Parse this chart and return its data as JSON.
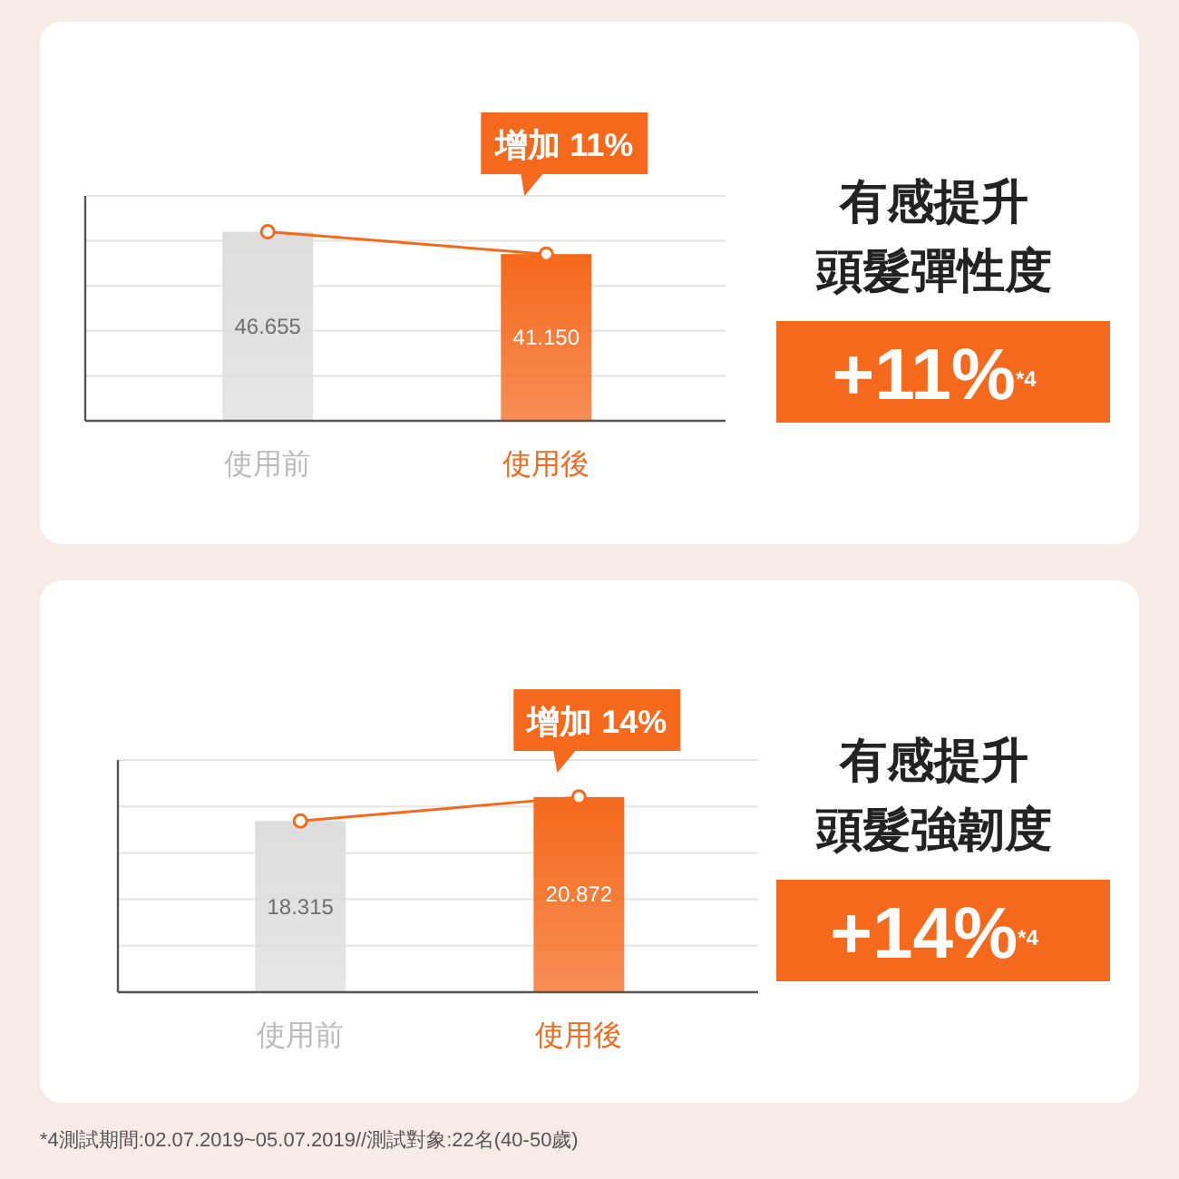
{
  "chart_data": [
    {
      "type": "bar",
      "categories": [
        "使用前",
        "使用後"
      ],
      "grid": "y",
      "annotations": [
        "增加 11%",
        "有感提升",
        "頭髮彈性度",
        "+11%$^{*4}$"
      ],
      "series": [
        {
          "values": [
            46.655,
            41.15
          ],
          "colors": [
            "#dddddd",
            "#f4691c"
          ],
          "value_labels": [
            "46.655",
            "41.150"
          ]
        },
        {
          "type": "line",
          "values": [
            46.655,
            41.15
          ],
          "color": "#f4691c",
          "marker": "circle"
        }
      ]
    },
    {
      "type": "bar",
      "categories": [
        "使用前",
        "使用後"
      ],
      "grid": "y",
      "annotations": [
        "增加 14%",
        "有感提升",
        "頭髮強韌度",
        "+14%$^{*4}$",
        "*4測試期間:02.07.2019~05.07.2019//測試對象:22名(40-50歲)"
      ],
      "series": [
        {
          "values": [
            18.315,
            20.872
          ],
          "colors": [
            "#dddddd",
            "#f4691c"
          ],
          "value_labels": [
            "18.315",
            "20.872"
          ]
        },
        {
          "type": "line",
          "values": [
            18.315,
            20.872
          ],
          "color": "#f4691c",
          "marker": "circle"
        }
      ]
    }
  ]
}
